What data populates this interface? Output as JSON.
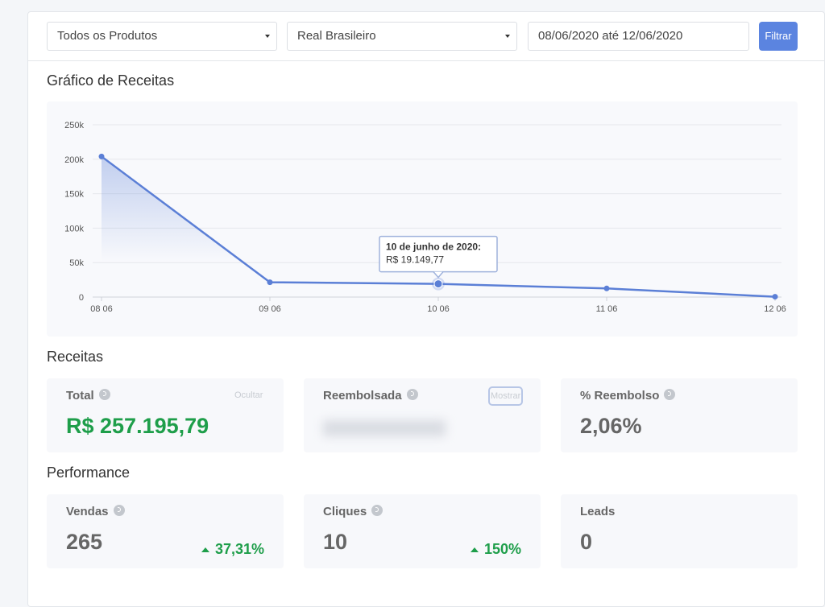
{
  "filters": {
    "product": "Todos os Produtos",
    "currency": "Real Brasileiro",
    "date_range": "08/06/2020 até 12/06/2020",
    "button": "Filtrar"
  },
  "chart_section": {
    "title": "Gráfico de Receitas"
  },
  "chart_data": {
    "type": "line",
    "categories": [
      "08 06",
      "09 06",
      "10 06",
      "11 06",
      "12 06"
    ],
    "values": [
      204000,
      21500,
      19149.77,
      12500,
      500
    ],
    "color": "#5b7fd6",
    "ylim": [
      0,
      250000
    ],
    "yticks": [
      {
        "value": 0,
        "label": "0"
      },
      {
        "value": 50000,
        "label": "50k"
      },
      {
        "value": 100000,
        "label": "100k"
      },
      {
        "value": 150000,
        "label": "150k"
      },
      {
        "value": 200000,
        "label": "200k"
      },
      {
        "value": 250000,
        "label": "250k"
      }
    ],
    "grid": true,
    "area": true,
    "annotations": [
      {
        "x": "10 06",
        "lines": [
          "10 de junho de 2020:",
          "R$ 19.149,77"
        ]
      }
    ]
  },
  "revenue": {
    "title": "Receitas",
    "cards": [
      {
        "label": "Total",
        "action": "Ocultar",
        "value": "R$ 257.195,79"
      },
      {
        "label": "Reembolsada",
        "action": "Mostrar"
      },
      {
        "label": "% Reembolso",
        "value": "2,06%"
      }
    ]
  },
  "performance": {
    "title": "Performance",
    "cards": [
      {
        "label": "Vendas",
        "value": "265",
        "change": "37,31%"
      },
      {
        "label": "Cliques",
        "value": "10",
        "change": "150%"
      },
      {
        "label": "Leads",
        "value": "0"
      }
    ]
  }
}
